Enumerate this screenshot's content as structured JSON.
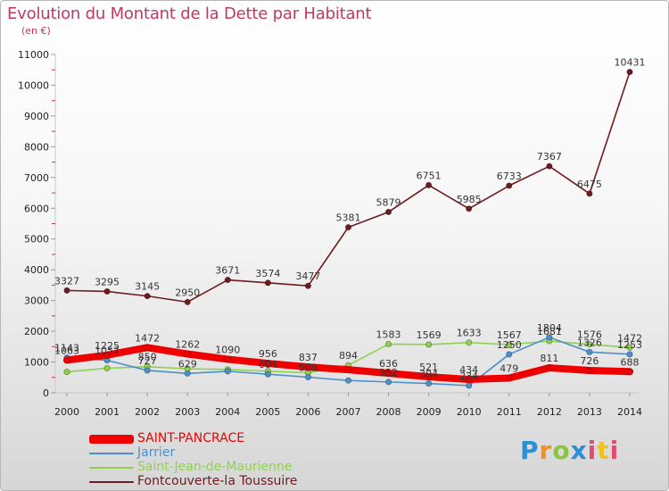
{
  "title": "Evolution du Montant de la Dette par Habitant",
  "unit_label": "(en €)",
  "chart_data": {
    "type": "line",
    "title": "Evolution du Montant de la Dette par Habitant",
    "ylabel": "(en €)",
    "xlabel": "",
    "x": [
      "2000",
      "2001",
      "2002",
      "2003",
      "2004",
      "2005",
      "2006",
      "2007",
      "2008",
      "2009",
      "2010",
      "2011",
      "2012",
      "2013",
      "2014"
    ],
    "ylim": [
      0,
      11000
    ],
    "yticks": [
      0,
      1000,
      2000,
      3000,
      4000,
      5000,
      6000,
      7000,
      8000,
      9000,
      10000,
      11000
    ],
    "grid": false,
    "legend_position": "bottom-left",
    "series": [
      {
        "name": "SAINT-PANCRACE",
        "color": "#ee0000",
        "values": [
          1063,
          1225,
          1472,
          1262,
          1090,
          956,
          837,
          750,
          636,
          521,
          434,
          479,
          811,
          726,
          688
        ],
        "labels": [
          "1063",
          "1225",
          "1472",
          "1262",
          "1090",
          "956",
          "837",
          "",
          "636",
          "521",
          "434",
          "479",
          "811",
          "726",
          "688"
        ]
      },
      {
        "name": "Jarrier",
        "color": "#4d90c8",
        "values": [
          1143,
          1057,
          727,
          629,
          700,
          604,
          508,
          400,
          352,
          304,
          234,
          1250,
          1804,
          1326,
          1253
        ],
        "labels": [
          "1143",
          "1057",
          "727",
          "629",
          "",
          "604",
          "508",
          "",
          "352",
          "304",
          "234",
          "1250",
          "1804",
          "1326",
          "1253"
        ]
      },
      {
        "name": "Saint-Jean-de-Maurienne",
        "color": "#8fd14f",
        "values": [
          680,
          800,
          850,
          780,
          760,
          700,
          650,
          894,
          1583,
          1569,
          1633,
          1567,
          1681,
          1576,
          1472
        ],
        "labels": [
          "",
          "",
          "850",
          "",
          "",
          "",
          "",
          "894",
          "1583",
          "1569",
          "1633",
          "1567",
          "1681",
          "1576",
          "1472"
        ]
      },
      {
        "name": "Fontcouverte-la Toussuire",
        "color": "#6e1a1e",
        "values": [
          3327,
          3295,
          3145,
          2950,
          3671,
          3574,
          3477,
          5381,
          5879,
          6751,
          5985,
          6733,
          7367,
          6475,
          10431
        ],
        "labels": [
          "3327",
          "3295",
          "3145",
          "2950",
          "3671",
          "3574",
          "3477",
          "5381",
          "5879",
          "6751",
          "5985",
          "6733",
          "7367",
          "6475",
          "10431"
        ]
      }
    ]
  },
  "logo": {
    "text": "Proxiti"
  }
}
